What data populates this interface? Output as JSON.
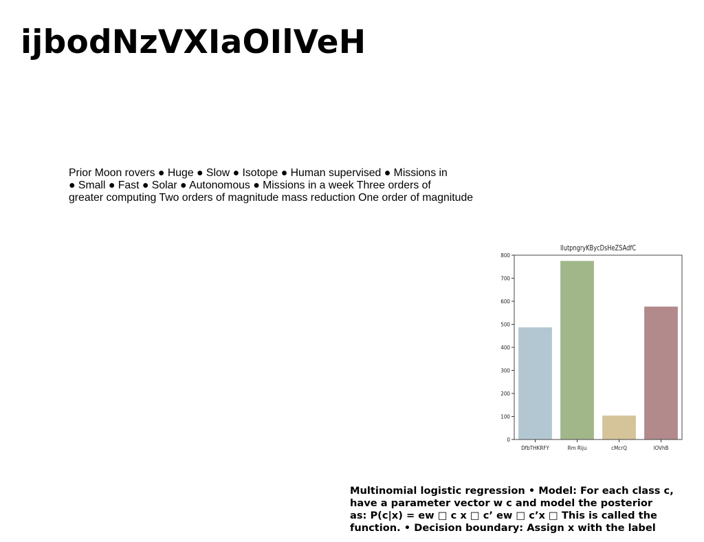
{
  "title": "ijbodNzVXIaOIlVeH",
  "moon_text": {
    "lines": [
      "Prior Moon rovers ● Huge ● Slow ● Isotope ● Human supervised ● Missions in",
      "● Small ● Fast ● Solar ● Autonomous ● Missions in a week Three orders of",
      "greater computing Two orders of magnitude mass reduction One order of magnitude"
    ]
  },
  "regression_text": {
    "lines": [
      "Multinomial logistic regression • Model: For each class c,",
      "have a parameter vector w c and model the posterior",
      "as: P(c|x) = ew □ c x □ c’ ew □ c’x □ This is called the",
      "function. • Decision boundary: Assign x with the label"
    ]
  },
  "chart_data": {
    "type": "bar",
    "title": "IlutpngryKBycDsHeZSAdfC",
    "categories": [
      "DfbTHKRFY",
      "Rm Riju",
      "cMcrQ",
      "lOVhB"
    ],
    "values": [
      487,
      775,
      104,
      577
    ],
    "colors": [
      "#b2c7d2",
      "#a1b78a",
      "#d5c49a",
      "#b28a8c"
    ],
    "ylim": [
      0,
      800
    ],
    "yticks": [
      0,
      100,
      200,
      300,
      400,
      500,
      600,
      700,
      800
    ],
    "xlabel": "",
    "ylabel": "",
    "grid": false
  }
}
